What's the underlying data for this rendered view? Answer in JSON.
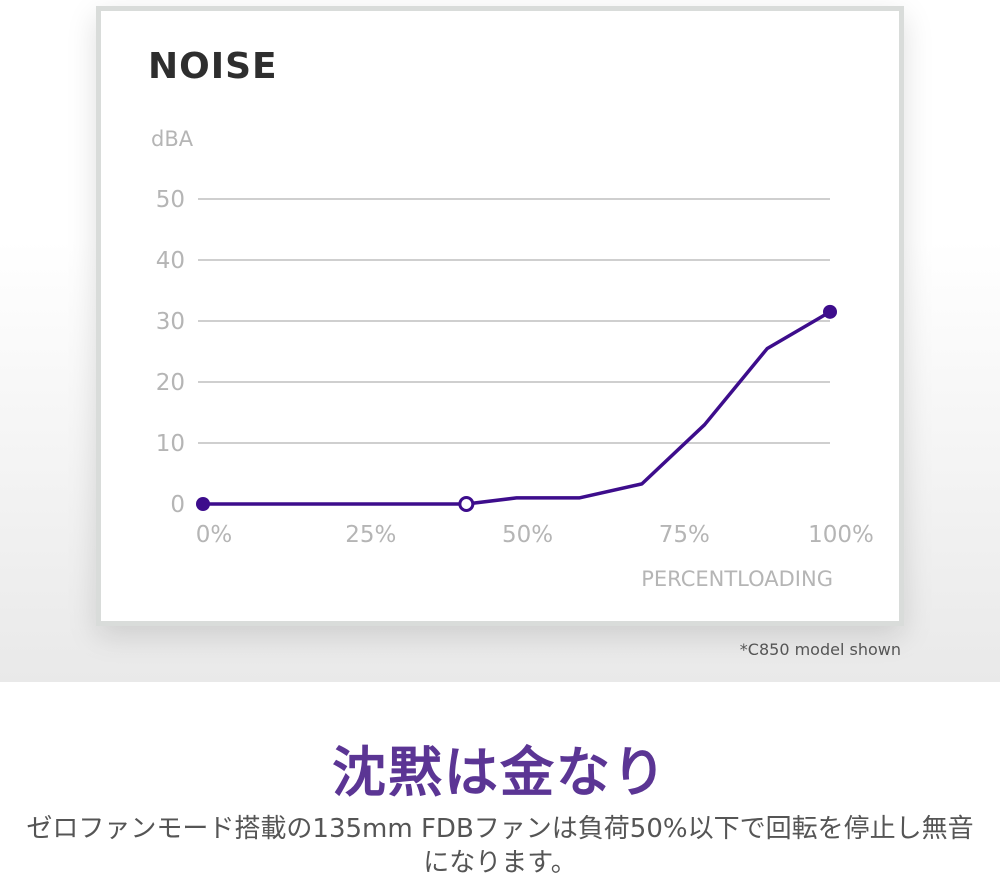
{
  "chart_data": {
    "type": "line",
    "title": "NOISE",
    "ylabel": "dBA",
    "xlabel": "PERCENTLOADING",
    "x_ticks": [
      "0%",
      "25%",
      "50%",
      "75%",
      "100%"
    ],
    "y_ticks": [
      "50",
      "40",
      "30",
      "20",
      "10",
      "0"
    ],
    "xlim": [
      0,
      100
    ],
    "ylim": [
      0,
      50
    ],
    "grid": true,
    "series": [
      {
        "color": "#3d0d8c",
        "x": [
          0,
          42,
          50,
          60,
          70,
          80,
          90,
          100
        ],
        "y": [
          0,
          0,
          1,
          1,
          3.3,
          13,
          25.5,
          31.5
        ],
        "markers": [
          {
            "x": 0,
            "y": 0,
            "style": "filled"
          },
          {
            "x": 42,
            "y": 0,
            "style": "hollow"
          },
          {
            "x": 100,
            "y": 31.5,
            "style": "filled"
          }
        ]
      }
    ]
  },
  "footnote": "*C850 model shown",
  "headline": "沈黙は金なり",
  "description": "ゼロファンモード搭載の135mm FDBファンは負荷50%以下で回転を停止し無音になります。",
  "colors": {
    "line": "#3d0d8c",
    "headline": "#5b3594",
    "grid": "#cfcfcf",
    "tick_text": "#b5b5b5"
  }
}
